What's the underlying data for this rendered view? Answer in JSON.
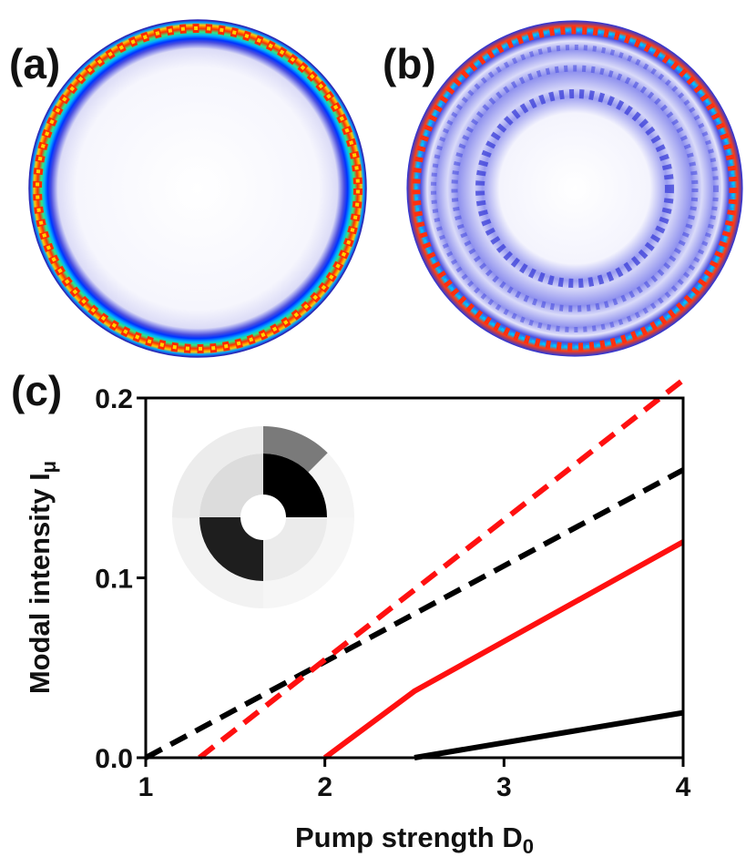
{
  "panels": {
    "a": {
      "label": "(a)"
    },
    "b": {
      "label": "(b)"
    },
    "c": {
      "label": "(c)"
    }
  },
  "chart_data": {
    "type": "line",
    "xlabel": "Pump strength D",
    "xlabel_sub": "0",
    "ylabel": "Modal intensity I",
    "ylabel_sub": "μ",
    "xlim": [
      1,
      4
    ],
    "ylim": [
      0,
      0.2
    ],
    "xticks": [
      1,
      2,
      3,
      4
    ],
    "xtick_labels": [
      "1",
      "2",
      "3",
      "4"
    ],
    "yticks": [
      0,
      0.1,
      0.2
    ],
    "ytick_labels": [
      "0.0",
      "0.1",
      "0.2"
    ],
    "series": [
      {
        "color": "#000000",
        "style": "dashed",
        "x": [
          1.0,
          4.0
        ],
        "y": [
          0.0,
          0.16
        ]
      },
      {
        "color": "#ff1010",
        "style": "dashed",
        "x": [
          1.3,
          4.0
        ],
        "y": [
          0.0,
          0.21
        ]
      },
      {
        "color": "#ff1010",
        "style": "solid",
        "x": [
          2.0,
          2.5,
          4.0
        ],
        "y": [
          0.0,
          0.037,
          0.12
        ]
      },
      {
        "color": "#000000",
        "style": "solid",
        "x": [
          2.5,
          4.0
        ],
        "y": [
          0.0,
          0.025
        ]
      }
    ]
  }
}
